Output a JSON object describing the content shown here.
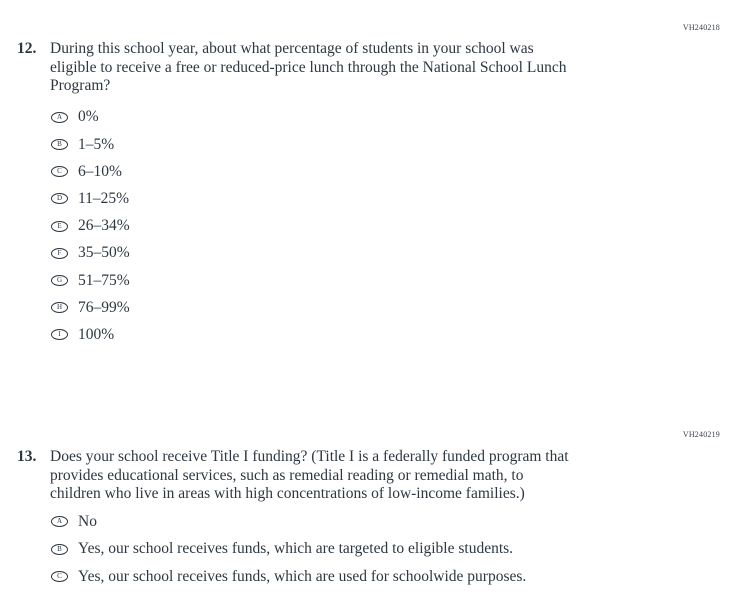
{
  "page": {
    "background": "#ffffff",
    "text_color": "#2d3742"
  },
  "questions": [
    {
      "code": "VH240218",
      "number": "12.",
      "lines": [
        "During this school year, about what percentage of students in your school was",
        "eligible to receive a free or reduced-price lunch through the National School Lunch",
        "Program?"
      ],
      "options": [
        {
          "letter": "A",
          "label": "0%"
        },
        {
          "letter": "B",
          "label": "1–5%"
        },
        {
          "letter": "C",
          "label": "6–10%"
        },
        {
          "letter": "D",
          "label": "11–25%"
        },
        {
          "letter": "E",
          "label": "26–34%"
        },
        {
          "letter": "F",
          "label": "35–50%"
        },
        {
          "letter": "G",
          "label": "51–75%"
        },
        {
          "letter": "H",
          "label": "76–99%"
        },
        {
          "letter": "I",
          "label": "100%"
        }
      ]
    },
    {
      "code": "VH240219",
      "number": "13.",
      "lines": [
        "Does your school receive Title I funding? (Title I is a federally funded program that",
        "provides educational services, such as remedial reading or remedial math, to",
        "children who live in areas with high concentrations of low-income families.)"
      ],
      "options": [
        {
          "letter": "A",
          "label": "No"
        },
        {
          "letter": "B",
          "label": "Yes, our school receives funds, which are targeted to eligible students."
        },
        {
          "letter": "C",
          "label": "Yes, our school receives funds, which are used for schoolwide purposes."
        }
      ]
    }
  ]
}
